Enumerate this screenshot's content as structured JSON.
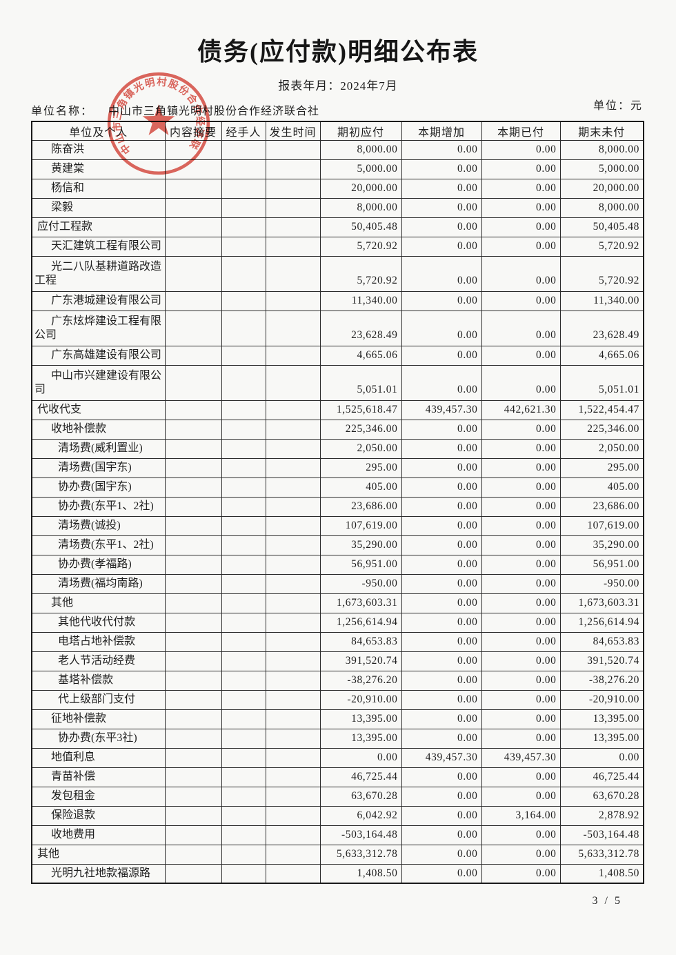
{
  "page": {
    "title": "债务(应付款)明细公布表",
    "report_period": "报表年月：2024年7月",
    "unit_name_label": "单位名称：",
    "unit_name": "中山市三角镇光明村股份合作经济联合社",
    "currency_unit": "单位：元",
    "page_number": "3 / 5"
  },
  "stamp": {
    "arc_text": "中山市三角镇光明村股份合作经济联合社",
    "color": "#d8473c"
  },
  "table": {
    "headers": [
      "单位及个人",
      "内容摘要",
      "经手人",
      "发生时间",
      "期初应付",
      "本期增加",
      "本期已付",
      "期末未付"
    ],
    "rows": [
      {
        "name": "陈奋洪",
        "indent": 1,
        "tall": false,
        "values": [
          "8,000.00",
          "0.00",
          "0.00",
          "8,000.00"
        ]
      },
      {
        "name": "黄建棠",
        "indent": 1,
        "tall": false,
        "values": [
          "5,000.00",
          "0.00",
          "0.00",
          "5,000.00"
        ]
      },
      {
        "name": "杨信和",
        "indent": 1,
        "tall": false,
        "values": [
          "20,000.00",
          "0.00",
          "0.00",
          "20,000.00"
        ]
      },
      {
        "name": "梁毅",
        "indent": 1,
        "tall": false,
        "values": [
          "8,000.00",
          "0.00",
          "0.00",
          "8,000.00"
        ]
      },
      {
        "name": "应付工程款",
        "indent": 0,
        "tall": false,
        "values": [
          "50,405.48",
          "0.00",
          "0.00",
          "50,405.48"
        ]
      },
      {
        "name": "天汇建筑工程有限公司",
        "indent": 1,
        "tall": false,
        "values": [
          "5,720.92",
          "0.00",
          "0.00",
          "5,720.92"
        ]
      },
      {
        "name": "光二八队基耕道路改造工程",
        "indent": 1,
        "tall": true,
        "values": [
          "5,720.92",
          "0.00",
          "0.00",
          "5,720.92"
        ]
      },
      {
        "name": "广东港城建设有限公司",
        "indent": 1,
        "tall": false,
        "values": [
          "11,340.00",
          "0.00",
          "0.00",
          "11,340.00"
        ]
      },
      {
        "name": "广东炫烨建设工程有限公司",
        "indent": 1,
        "tall": true,
        "values": [
          "23,628.49",
          "0.00",
          "0.00",
          "23,628.49"
        ]
      },
      {
        "name": "广东高雄建设有限公司",
        "indent": 1,
        "tall": false,
        "values": [
          "4,665.06",
          "0.00",
          "0.00",
          "4,665.06"
        ]
      },
      {
        "name": "中山市兴建建设有限公司",
        "indent": 1,
        "tall": true,
        "values": [
          "5,051.01",
          "0.00",
          "0.00",
          "5,051.01"
        ]
      },
      {
        "name": "代收代支",
        "indent": 0,
        "tall": false,
        "values": [
          "1,525,618.47",
          "439,457.30",
          "442,621.30",
          "1,522,454.47"
        ]
      },
      {
        "name": "收地补偿款",
        "indent": 1,
        "tall": false,
        "values": [
          "225,346.00",
          "0.00",
          "0.00",
          "225,346.00"
        ]
      },
      {
        "name": "清场费(威利置业)",
        "indent": 2,
        "tall": false,
        "values": [
          "2,050.00",
          "0.00",
          "0.00",
          "2,050.00"
        ]
      },
      {
        "name": "清场费(国宇东)",
        "indent": 2,
        "tall": false,
        "values": [
          "295.00",
          "0.00",
          "0.00",
          "295.00"
        ]
      },
      {
        "name": "协办费(国宇东)",
        "indent": 2,
        "tall": false,
        "values": [
          "405.00",
          "0.00",
          "0.00",
          "405.00"
        ]
      },
      {
        "name": "协办费(东平1、2社)",
        "indent": 2,
        "tall": false,
        "values": [
          "23,686.00",
          "0.00",
          "0.00",
          "23,686.00"
        ]
      },
      {
        "name": "清场费(诚投)",
        "indent": 2,
        "tall": false,
        "values": [
          "107,619.00",
          "0.00",
          "0.00",
          "107,619.00"
        ]
      },
      {
        "name": "清场费(东平1、2社)",
        "indent": 2,
        "tall": false,
        "values": [
          "35,290.00",
          "0.00",
          "0.00",
          "35,290.00"
        ]
      },
      {
        "name": "协办费(孝福路)",
        "indent": 2,
        "tall": false,
        "values": [
          "56,951.00",
          "0.00",
          "0.00",
          "56,951.00"
        ]
      },
      {
        "name": "清场费(福均南路)",
        "indent": 2,
        "tall": false,
        "values": [
          "-950.00",
          "0.00",
          "0.00",
          "-950.00"
        ]
      },
      {
        "name": "其他",
        "indent": 1,
        "tall": false,
        "values": [
          "1,673,603.31",
          "0.00",
          "0.00",
          "1,673,603.31"
        ]
      },
      {
        "name": "其他代收代付款",
        "indent": 2,
        "tall": false,
        "values": [
          "1,256,614.94",
          "0.00",
          "0.00",
          "1,256,614.94"
        ]
      },
      {
        "name": "电塔占地补偿款",
        "indent": 2,
        "tall": false,
        "values": [
          "84,653.83",
          "0.00",
          "0.00",
          "84,653.83"
        ]
      },
      {
        "name": "老人节活动经费",
        "indent": 2,
        "tall": false,
        "values": [
          "391,520.74",
          "0.00",
          "0.00",
          "391,520.74"
        ]
      },
      {
        "name": "基塔补偿款",
        "indent": 2,
        "tall": false,
        "values": [
          "-38,276.20",
          "0.00",
          "0.00",
          "-38,276.20"
        ]
      },
      {
        "name": "代上级部门支付",
        "indent": 2,
        "tall": false,
        "values": [
          "-20,910.00",
          "0.00",
          "0.00",
          "-20,910.00"
        ]
      },
      {
        "name": "征地补偿款",
        "indent": 1,
        "tall": false,
        "values": [
          "13,395.00",
          "0.00",
          "0.00",
          "13,395.00"
        ]
      },
      {
        "name": "协办费(东平3社)",
        "indent": 2,
        "tall": false,
        "values": [
          "13,395.00",
          "0.00",
          "0.00",
          "13,395.00"
        ]
      },
      {
        "name": "地值利息",
        "indent": 1,
        "tall": false,
        "values": [
          "0.00",
          "439,457.30",
          "439,457.30",
          "0.00"
        ]
      },
      {
        "name": "青苗补偿",
        "indent": 1,
        "tall": false,
        "values": [
          "46,725.44",
          "0.00",
          "0.00",
          "46,725.44"
        ]
      },
      {
        "name": "发包租金",
        "indent": 1,
        "tall": false,
        "values": [
          "63,670.28",
          "0.00",
          "0.00",
          "63,670.28"
        ]
      },
      {
        "name": "保险退款",
        "indent": 1,
        "tall": false,
        "values": [
          "6,042.92",
          "0.00",
          "3,164.00",
          "2,878.92"
        ]
      },
      {
        "name": "收地费用",
        "indent": 1,
        "tall": false,
        "values": [
          "-503,164.48",
          "0.00",
          "0.00",
          "-503,164.48"
        ]
      },
      {
        "name": "其他",
        "indent": 0,
        "tall": false,
        "values": [
          "5,633,312.78",
          "0.00",
          "0.00",
          "5,633,312.78"
        ]
      },
      {
        "name": "光明九社地款福源路",
        "indent": 1,
        "tall": false,
        "values": [
          "1,408.50",
          "0.00",
          "0.00",
          "1,408.50"
        ]
      }
    ]
  }
}
